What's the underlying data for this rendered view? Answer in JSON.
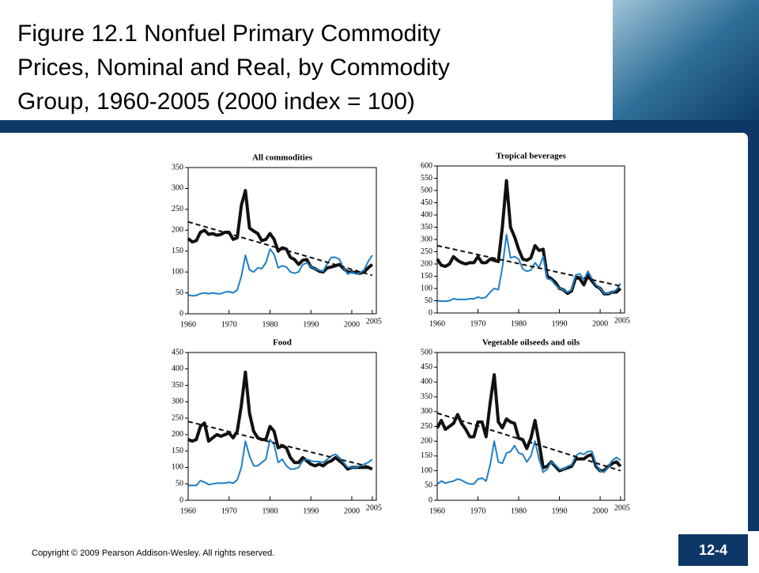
{
  "slide": {
    "title": [
      "Figure 12.1 Nonfuel Primary Commodity",
      "Prices, Nominal and Real, by Commodity",
      "Group, 1960-2005 (2000 index = 100)"
    ],
    "copyright": "Copyright © 2009 Pearson Addison-Wesley. All rights reserved.",
    "page": "12-4"
  },
  "chart_data": [
    {
      "type": "line",
      "title": "All commodities",
      "x": [
        1960,
        1961,
        1962,
        1963,
        1964,
        1965,
        1966,
        1967,
        1968,
        1969,
        1970,
        1971,
        1972,
        1973,
        1974,
        1975,
        1976,
        1977,
        1978,
        1979,
        1980,
        1981,
        1982,
        1983,
        1984,
        1985,
        1986,
        1987,
        1988,
        1989,
        1990,
        1991,
        1992,
        1993,
        1994,
        1995,
        1996,
        1997,
        1998,
        1999,
        2000,
        2001,
        2002,
        2003,
        2004,
        2005
      ],
      "series": [
        {
          "color": "#111111",
          "values": [
            180,
            172,
            175,
            195,
            200,
            190,
            192,
            188,
            190,
            195,
            195,
            178,
            182,
            260,
            295,
            205,
            198,
            192,
            175,
            178,
            192,
            178,
            150,
            158,
            155,
            135,
            130,
            118,
            128,
            130,
            112,
            108,
            102,
            100,
            110,
            112,
            115,
            118,
            108,
            100,
            100,
            98,
            97,
            100,
            110,
            118
          ]
        },
        {
          "color": "#1f7fc4",
          "values": [
            45,
            43,
            44,
            48,
            50,
            48,
            50,
            48,
            48,
            52,
            53,
            50,
            57,
            90,
            140,
            105,
            100,
            110,
            108,
            122,
            155,
            142,
            110,
            115,
            112,
            100,
            97,
            100,
            118,
            122,
            112,
            108,
            104,
            102,
            120,
            135,
            135,
            130,
            110,
            95,
            100,
            95,
            98,
            105,
            125,
            140
          ]
        },
        {
          "color": "#111111",
          "x": [
            1960,
            2005
          ],
          "values": [
            220,
            92
          ]
        }
      ],
      "xlim": [
        1960,
        2006
      ],
      "xticks": [
        1960,
        1970,
        1980,
        1990,
        2000,
        2005
      ],
      "ylim": [
        0,
        350
      ],
      "yticks": [
        0,
        50,
        100,
        150,
        200,
        250,
        300,
        350
      ]
    },
    {
      "type": "line",
      "title": "Tropical beverages",
      "x": [
        1960,
        1961,
        1962,
        1963,
        1964,
        1965,
        1966,
        1967,
        1968,
        1969,
        1970,
        1971,
        1972,
        1973,
        1974,
        1975,
        1976,
        1977,
        1978,
        1979,
        1980,
        1981,
        1982,
        1983,
        1984,
        1985,
        1986,
        1987,
        1988,
        1989,
        1990,
        1991,
        1992,
        1993,
        1994,
        1995,
        1996,
        1997,
        1998,
        1999,
        2000,
        2001,
        2002,
        2003,
        2004,
        2005
      ],
      "series": [
        {
          "color": "#111111",
          "values": [
            220,
            195,
            190,
            200,
            230,
            215,
            205,
            200,
            205,
            205,
            230,
            205,
            205,
            220,
            215,
            210,
            350,
            540,
            350,
            310,
            260,
            220,
            215,
            225,
            275,
            255,
            260,
            150,
            140,
            125,
            100,
            95,
            80,
            90,
            145,
            140,
            115,
            155,
            130,
            110,
            100,
            78,
            78,
            85,
            85,
            100
          ]
        },
        {
          "color": "#1f7fc4",
          "values": [
            50,
            48,
            48,
            50,
            58,
            55,
            55,
            55,
            58,
            58,
            65,
            60,
            65,
            85,
            100,
            95,
            185,
            320,
            225,
            230,
            220,
            180,
            170,
            175,
            205,
            185,
            230,
            140,
            135,
            115,
            100,
            95,
            85,
            95,
            155,
            160,
            135,
            170,
            140,
            115,
            100,
            80,
            80,
            85,
            95,
            120
          ]
        },
        {
          "color": "#111111",
          "x": [
            1960,
            2005
          ],
          "values": [
            275,
            110
          ]
        }
      ],
      "xlim": [
        1960,
        2006
      ],
      "xticks": [
        1960,
        1970,
        1980,
        1990,
        2000,
        2005
      ],
      "ylim": [
        0,
        600
      ],
      "yticks": [
        0,
        50,
        100,
        150,
        200,
        250,
        300,
        350,
        400,
        450,
        500,
        550,
        600
      ]
    },
    {
      "type": "line",
      "title": "Food",
      "x": [
        1960,
        1961,
        1962,
        1963,
        1964,
        1965,
        1966,
        1967,
        1968,
        1969,
        1970,
        1971,
        1972,
        1973,
        1974,
        1975,
        1976,
        1977,
        1978,
        1979,
        1980,
        1981,
        1982,
        1983,
        1984,
        1985,
        1986,
        1987,
        1988,
        1989,
        1990,
        1991,
        1992,
        1993,
        1994,
        1995,
        1996,
        1997,
        1998,
        1999,
        2000,
        2001,
        2002,
        2003,
        2004,
        2005
      ],
      "series": [
        {
          "color": "#111111",
          "values": [
            185,
            180,
            185,
            225,
            235,
            180,
            190,
            200,
            195,
            200,
            205,
            190,
            210,
            290,
            390,
            265,
            210,
            190,
            185,
            185,
            225,
            210,
            160,
            165,
            160,
            130,
            115,
            115,
            130,
            120,
            110,
            105,
            110,
            105,
            115,
            120,
            130,
            120,
            110,
            95,
            100,
            100,
            100,
            100,
            100,
            95
          ]
        },
        {
          "color": "#1f7fc4",
          "values": [
            45,
            45,
            45,
            60,
            55,
            48,
            50,
            52,
            52,
            52,
            55,
            52,
            62,
            100,
            180,
            135,
            105,
            105,
            115,
            125,
            185,
            170,
            115,
            125,
            105,
            95,
            95,
            100,
            120,
            125,
            120,
            118,
            118,
            115,
            125,
            135,
            140,
            130,
            115,
            100,
            100,
            100,
            105,
            110,
            115,
            125
          ]
        },
        {
          "color": "#111111",
          "x": [
            1960,
            2005
          ],
          "values": [
            240,
            100
          ]
        }
      ],
      "xlim": [
        1960,
        2006
      ],
      "xticks": [
        1960,
        1970,
        1980,
        1990,
        2000,
        2005
      ],
      "ylim": [
        0,
        450
      ],
      "yticks": [
        0,
        50,
        100,
        150,
        200,
        250,
        300,
        350,
        400,
        450
      ]
    },
    {
      "type": "line",
      "title": "Vegetable oilseeds and oils",
      "x": [
        1960,
        1961,
        1962,
        1963,
        1964,
        1965,
        1966,
        1967,
        1968,
        1969,
        1970,
        1971,
        1972,
        1973,
        1974,
        1975,
        1976,
        1977,
        1978,
        1979,
        1980,
        1981,
        1982,
        1983,
        1984,
        1985,
        1986,
        1987,
        1988,
        1989,
        1990,
        1991,
        1992,
        1993,
        1994,
        1995,
        1996,
        1997,
        1998,
        1999,
        2000,
        2001,
        2002,
        2003,
        2004,
        2005
      ],
      "series": [
        {
          "color": "#111111",
          "values": [
            245,
            270,
            240,
            250,
            260,
            290,
            260,
            240,
            215,
            215,
            265,
            265,
            215,
            330,
            425,
            265,
            245,
            275,
            265,
            260,
            210,
            205,
            175,
            210,
            270,
            195,
            110,
            115,
            130,
            115,
            100,
            105,
            110,
            115,
            140,
            140,
            140,
            150,
            155,
            115,
            100,
            100,
            115,
            125,
            130,
            115
          ]
        },
        {
          "color": "#1f7fc4",
          "values": [
            55,
            65,
            58,
            62,
            65,
            72,
            68,
            60,
            55,
            55,
            72,
            75,
            65,
            120,
            200,
            130,
            125,
            160,
            165,
            185,
            160,
            155,
            130,
            150,
            200,
            140,
            95,
            105,
            130,
            120,
            105,
            105,
            115,
            120,
            150,
            160,
            155,
            165,
            165,
            120,
            100,
            95,
            115,
            135,
            145,
            135
          ]
        },
        {
          "color": "#111111",
          "x": [
            1960,
            2005
          ],
          "values": [
            295,
            100
          ]
        }
      ],
      "xlim": [
        1960,
        2006
      ],
      "xticks": [
        1960,
        1970,
        1980,
        1990,
        2000,
        2005
      ],
      "ylim": [
        0,
        500
      ],
      "yticks": [
        0,
        50,
        100,
        150,
        200,
        250,
        300,
        350,
        400,
        450,
        500
      ]
    }
  ]
}
